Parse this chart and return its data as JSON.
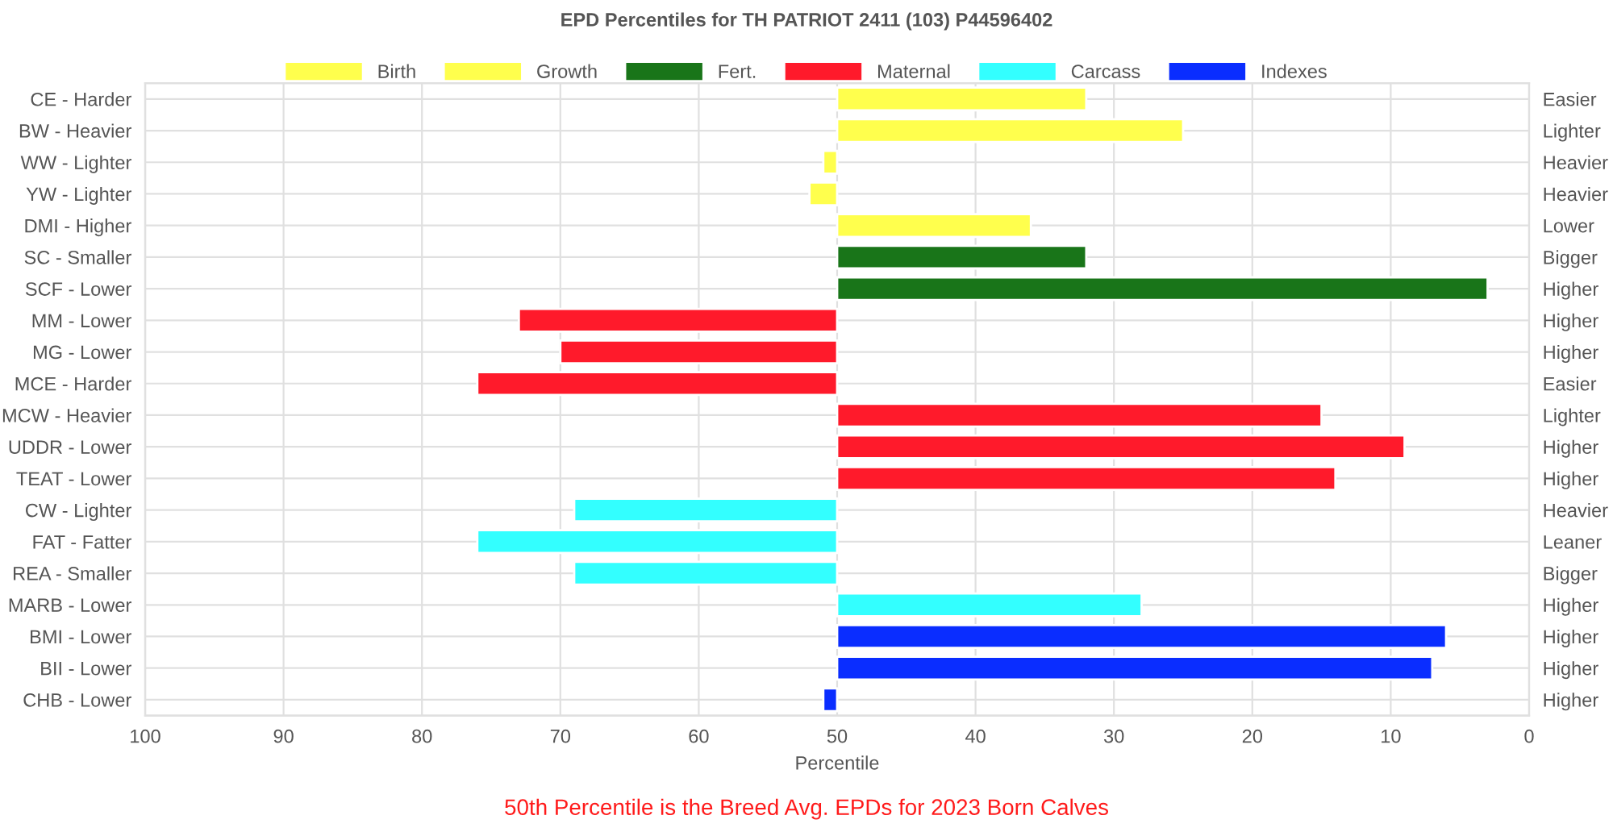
{
  "chart_data": {
    "type": "bar",
    "orientation": "horizontal",
    "title": "EPD Percentiles for TH PATRIOT 2411 (103) P44596402",
    "xlabel": "Percentile",
    "categories": [
      "CE - Harder",
      "BW - Heavier",
      "WW - Lighter",
      "YW - Lighter",
      "DMI - Higher",
      "SC - Smaller",
      "SCF - Lower",
      "MM - Lower",
      "MG - Lower",
      "MCE - Harder",
      "MCW - Heavier",
      "UDDR - Lower",
      "TEAT - Lower",
      "CW - Lighter",
      "FAT - Fatter",
      "REA - Smaller",
      "MARB - Lower",
      "BMI - Lower",
      "BII - Lower",
      "CHB - Lower"
    ],
    "y2_categories": [
      "Easier",
      "Lighter",
      "Heavier",
      "Heavier",
      "Lower",
      "Bigger",
      "Higher",
      "Higher",
      "Higher",
      "Easier",
      "Lighter",
      "Higher",
      "Higher",
      "Heavier",
      "Leaner",
      "Bigger",
      "Higher",
      "Higher",
      "Higher",
      "Higher"
    ],
    "series": [
      {
        "name": "Birth",
        "color": "#ffff4d",
        "base": [
          50,
          50,
          null,
          null,
          null,
          null,
          null,
          null,
          null,
          null,
          null,
          null,
          null,
          null,
          null,
          null,
          null,
          null,
          null,
          null
        ],
        "values": [
          -18,
          -25,
          null,
          null,
          null,
          null,
          null,
          null,
          null,
          null,
          null,
          null,
          null,
          null,
          null,
          null,
          null,
          null,
          null,
          null
        ]
      },
      {
        "name": "Growth",
        "color": "#ffff4d",
        "base": [
          null,
          null,
          50,
          50,
          50,
          null,
          null,
          null,
          null,
          null,
          null,
          null,
          null,
          null,
          null,
          null,
          null,
          null,
          null,
          null
        ],
        "values": [
          null,
          null,
          1,
          2,
          -14,
          null,
          null,
          null,
          null,
          null,
          null,
          null,
          null,
          null,
          null,
          null,
          null,
          null,
          null,
          null
        ]
      },
      {
        "name": "Fert.",
        "color": "#197519",
        "base": [
          null,
          null,
          null,
          null,
          null,
          50,
          50,
          null,
          null,
          null,
          null,
          null,
          null,
          null,
          null,
          null,
          null,
          null,
          null,
          null
        ],
        "values": [
          null,
          null,
          null,
          null,
          null,
          -18,
          -47,
          null,
          null,
          null,
          null,
          null,
          null,
          null,
          null,
          null,
          null,
          null,
          null,
          null
        ]
      },
      {
        "name": "Maternal",
        "color": "#ff1a2b",
        "base": [
          null,
          null,
          null,
          null,
          null,
          null,
          null,
          50,
          50,
          50,
          50,
          50,
          50,
          null,
          null,
          null,
          null,
          null,
          null,
          null
        ],
        "values": [
          null,
          null,
          null,
          null,
          null,
          null,
          null,
          23,
          20,
          26,
          -35,
          -41,
          -36,
          null,
          null,
          null,
          null,
          null,
          null,
          null
        ]
      },
      {
        "name": "Carcass",
        "color": "#33ffff",
        "base": [
          null,
          null,
          null,
          null,
          null,
          null,
          null,
          null,
          null,
          null,
          null,
          null,
          null,
          50,
          50,
          50,
          50,
          null,
          null,
          null
        ],
        "values": [
          null,
          null,
          null,
          null,
          null,
          null,
          null,
          null,
          null,
          null,
          null,
          null,
          null,
          19,
          26,
          19,
          -22,
          null,
          null,
          null
        ]
      },
      {
        "name": "Indexes",
        "color": "#0a2dff",
        "base": [
          null,
          null,
          null,
          null,
          null,
          null,
          null,
          null,
          null,
          null,
          null,
          null,
          null,
          null,
          null,
          null,
          null,
          50,
          50,
          50
        ],
        "values": [
          null,
          null,
          null,
          null,
          null,
          null,
          null,
          null,
          null,
          null,
          null,
          null,
          null,
          null,
          null,
          null,
          null,
          -44,
          -43,
          1
        ]
      }
    ],
    "xlim": [
      100,
      0
    ],
    "xticks": [
      100,
      90,
      80,
      70,
      60,
      50,
      40,
      30,
      20,
      10,
      0
    ],
    "grid": true,
    "legend": "top",
    "annotations": [
      "50th Percentile is the Breed Avg. EPDs for 2023 Born Calves"
    ]
  }
}
